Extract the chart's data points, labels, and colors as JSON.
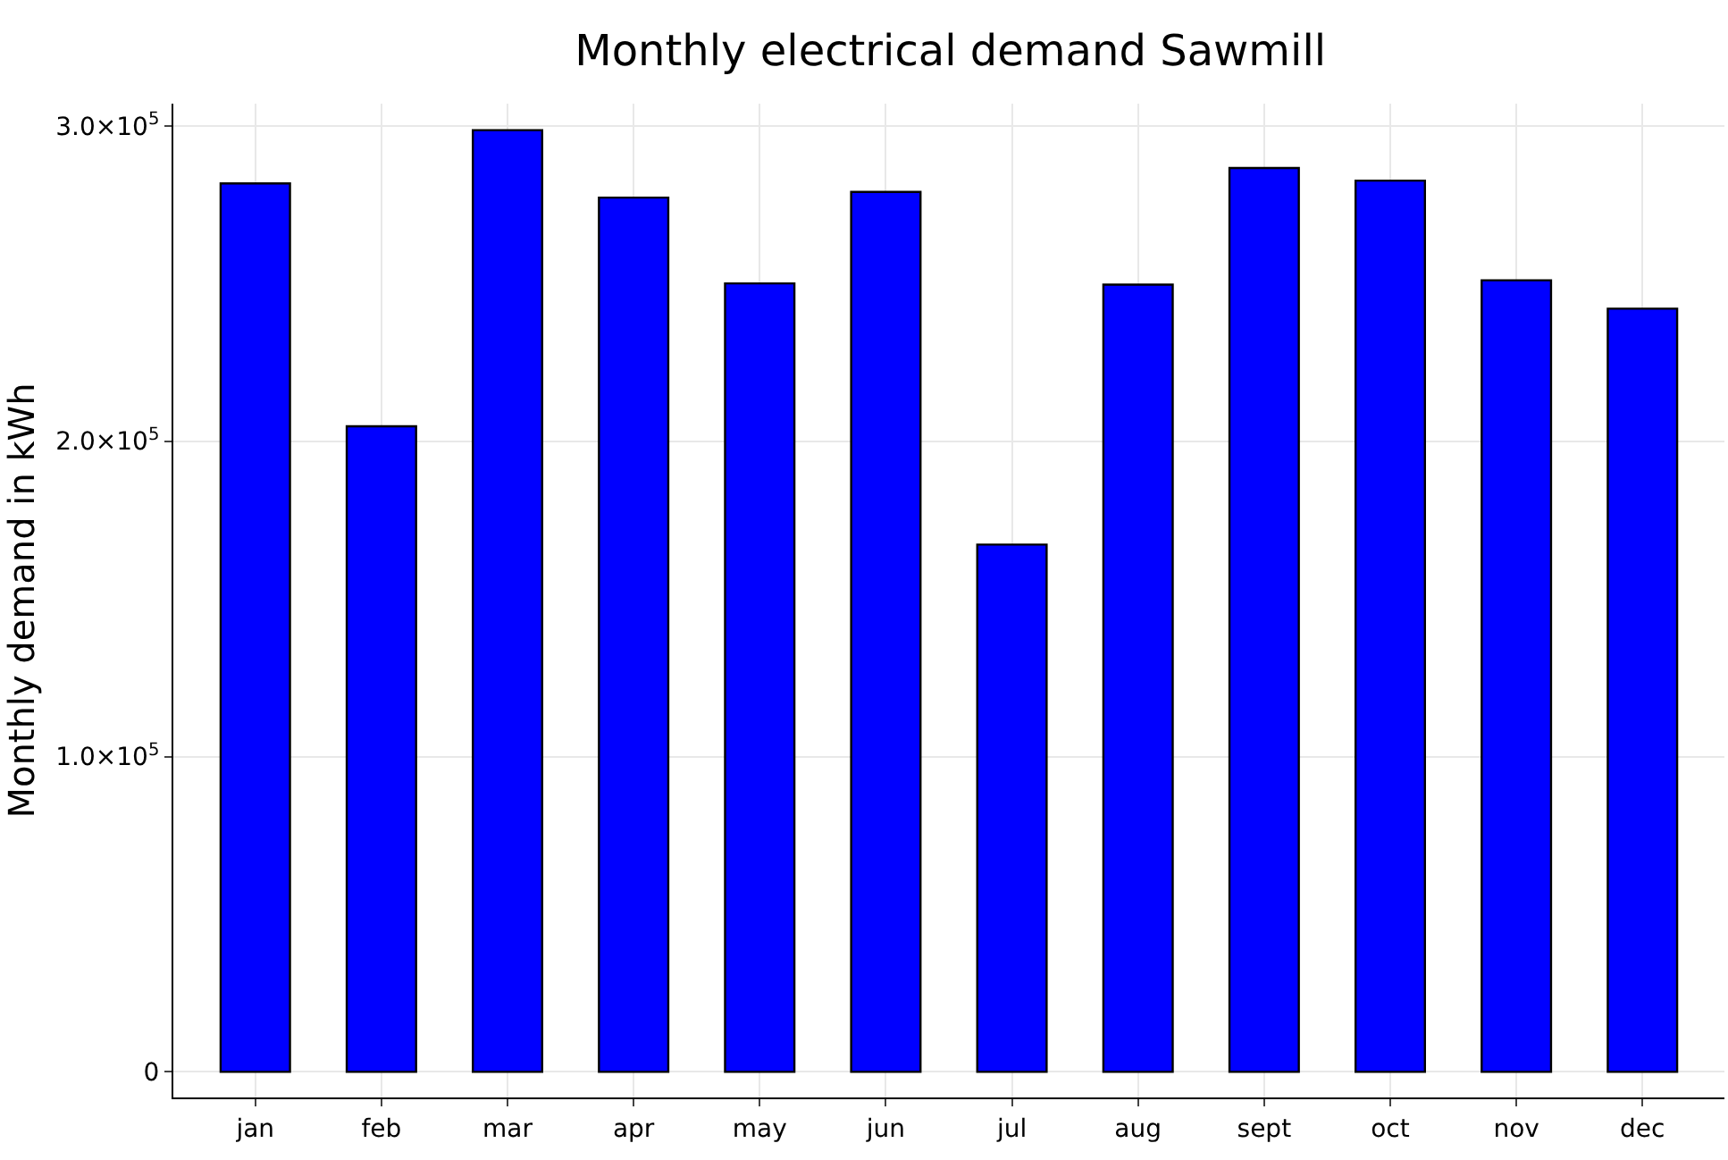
{
  "chart_data": {
    "type": "bar",
    "title": "Monthly electrical demand Sawmill",
    "ylabel": "Monthly demand in kWh",
    "categories": [
      "jan",
      "feb",
      "mar",
      "apr",
      "may",
      "jun",
      "jul",
      "aug",
      "sept",
      "oct",
      "nov",
      "dec"
    ],
    "values": [
      281700,
      204700,
      298600,
      277200,
      250000,
      279000,
      167200,
      249600,
      286600,
      282600,
      251000,
      242000
    ],
    "color": "#0000ff",
    "ylim": [
      -8100,
      307000
    ],
    "yticks": [
      {
        "value": 0,
        "label": "0"
      },
      {
        "value": 100000,
        "label": "1.0×10$^{5}$"
      },
      {
        "value": 200000,
        "label": "2.0×10$^{5}$"
      },
      {
        "value": 300000,
        "label": "3.0×10$^{5}$"
      }
    ],
    "grid": true
  }
}
